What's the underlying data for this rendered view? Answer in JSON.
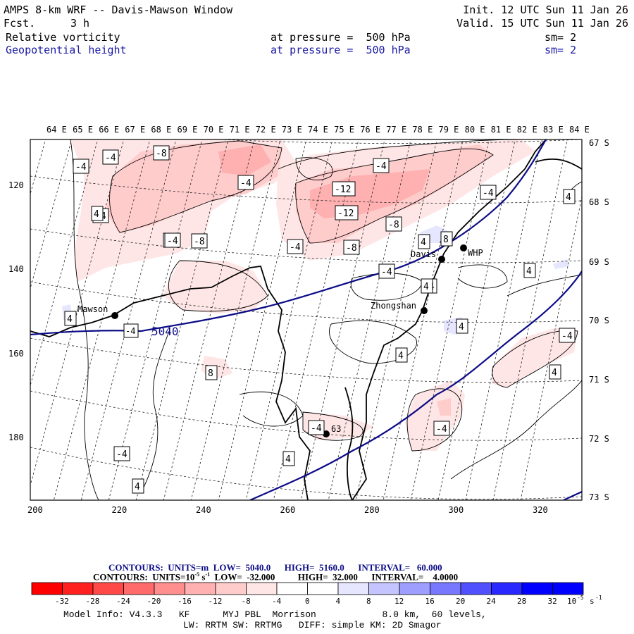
{
  "header": {
    "model_title": "AMPS 8-km WRF -- Davis-Mawson Window",
    "fcst_label": "Fcst.",
    "fcst_value": "3 h",
    "init": "Init. 12 UTC Sun 11 Jan 26",
    "valid": "Valid. 15 UTC Sun 11 Jan 26",
    "field1": "Relative vorticity",
    "field1_level": "at pressure =  500 hPa",
    "field1_sm": "sm= 2",
    "field2": "Geopotential height",
    "field2_level": "at pressure =  500 hPa",
    "field2_sm": "sm= 2"
  },
  "map": {
    "lon_labels": [
      "64 E",
      "65 E",
      "66 E",
      "67 E",
      "68 E",
      "69 E",
      "70 E",
      "71 E",
      "72 E",
      "73 E",
      "74 E",
      "75 E",
      "76 E",
      "77 E",
      "78 E",
      "79 E",
      "80 E",
      "81 E",
      "82 E",
      "83 E",
      "84 E"
    ],
    "lat_labels": [
      "67 S",
      "68 S",
      "69 S",
      "70 S",
      "71 S",
      "72 S",
      "73 S"
    ],
    "x_ticks": [
      "200",
      "220",
      "240",
      "260",
      "280",
      "300",
      "320"
    ],
    "y_ticks": [
      "120",
      "140",
      "160",
      "180"
    ],
    "stations": [
      {
        "name": "Mawson"
      },
      {
        "name": "Davis"
      },
      {
        "name": "WHP"
      },
      {
        "name": "Zhongshan"
      },
      {
        "name": ""
      }
    ],
    "height_contour_label": "5040",
    "spot_label": "63",
    "vort_labels": [
      "-4",
      "-4",
      "-8",
      "-4",
      "-4",
      "-4",
      "-4",
      "-8",
      "-4",
      "-4",
      "-12",
      "-12",
      "-8",
      "-8",
      "-4",
      "-4",
      "4",
      "8",
      "4",
      "4",
      "4",
      "4",
      "4",
      "8",
      "-4",
      "4",
      "4",
      "-4",
      "-4",
      "-4",
      "4",
      "4",
      "4",
      "-4",
      "4"
    ]
  },
  "footer": {
    "contours1": {
      "prefix": "CONTOURS:  UNITS=m",
      "low": "LOW=  5040.0",
      "high": "HIGH=  5160.0",
      "interval": "INTERVAL=   60.000"
    },
    "contours2": {
      "prefix": "CONTOURS:  UNITS=10",
      "exp": "-5",
      "unit": "s",
      "unit_exp": "-1",
      "low": "LOW=  -32.000",
      "high": "HIGH=  32.000",
      "interval": "INTERVAL=    4.0000"
    },
    "colorbar": {
      "labels": [
        "-32",
        "-28",
        "-24",
        "-20",
        "-16",
        "-12",
        "-8",
        "-4",
        "0",
        "4",
        "8",
        "12",
        "16",
        "20",
        "24",
        "28",
        "32"
      ],
      "colors": [
        "#ff0000",
        "#ff2020",
        "#ff4848",
        "#ff6a6a",
        "#ff8e8e",
        "#ffb0b0",
        "#ffcccc",
        "#ffe6e6",
        "#ffffff",
        "#ffffff",
        "#e6e6ff",
        "#c4c4ff",
        "#9e9eff",
        "#7878ff",
        "#5050ff",
        "#2828ff",
        "#0000ff"
      ],
      "unit_base": "10",
      "unit_exp": "-5",
      "unit_s": "s",
      "unit_s_exp": "-1"
    },
    "model_info": "Model Info: V4.3.3   KF      MYJ PBL  Morrison            8.0 km,  60 levels,",
    "physics_info": "LW: RRTM SW: RRTMG   DIFF: simple KM: 2D Smagor"
  }
}
